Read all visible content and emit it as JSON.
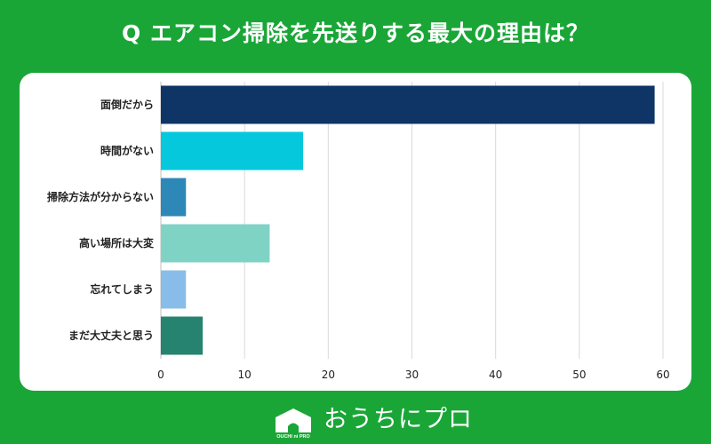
{
  "header": {
    "title": "Q エアコン掃除を先送りする最大の理由は？"
  },
  "chart_data": {
    "type": "bar",
    "orientation": "horizontal",
    "title": "Q エアコン掃除を先送りする最大の理由は？",
    "categories": [
      "面倒だから",
      "時間がない",
      "掃除方法が分からない",
      "高い場所は大変",
      "忘れてしまう",
      "まだ大丈夫と思う"
    ],
    "values": [
      59,
      17,
      3,
      13,
      3,
      5
    ],
    "colors": [
      "#0f3567",
      "#06c8dd",
      "#2d88b8",
      "#7fd3c5",
      "#88bdea",
      "#26836f"
    ],
    "xlim": [
      0,
      60
    ],
    "xticks": [
      "0",
      "10",
      "20",
      "30",
      "40",
      "50",
      "60"
    ],
    "grid": true,
    "legend": "none"
  },
  "footer": {
    "logo_text": "おうちにプロ",
    "logo_mark_text": "OUCHI ni PRO",
    "logo_icon": "house-icon"
  }
}
